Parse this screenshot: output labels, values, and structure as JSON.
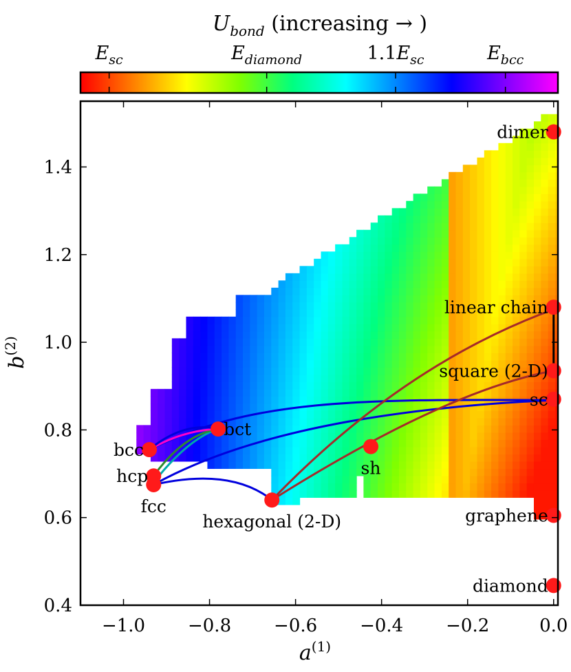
{
  "chart_data": {
    "type": "heatmap",
    "title": "U_bond (increasing →)",
    "colorbar": {
      "label_main": "U",
      "label_sub": "bond",
      "label_rest": " (increasing → )",
      "ticks": [
        {
          "main": "E",
          "sub": "sc",
          "prefix": "",
          "pos": 0.06
        },
        {
          "main": "E",
          "sub": "diamond",
          "prefix": "",
          "pos": 0.39
        },
        {
          "main": "E",
          "sub": "sc",
          "prefix": "1.1",
          "pos": 0.66
        },
        {
          "main": "E",
          "sub": "bcc",
          "prefix": "",
          "pos": 0.89
        }
      ],
      "stops": [
        "#ff0000",
        "#ff8000",
        "#ffff00",
        "#80ff00",
        "#00ff80",
        "#00ffff",
        "#0080ff",
        "#0000ff",
        "#8000ff",
        "#ff00ff"
      ]
    },
    "xlabel": "a",
    "xlabel_sup": "(1)",
    "ylabel": "b",
    "ylabel_sup": "(2)",
    "xlim": [
      -1.1,
      0.01
    ],
    "ylim": [
      0.4,
      1.55
    ],
    "xticks": [
      -1.0,
      -0.8,
      -0.6,
      -0.4,
      -0.2,
      0.0
    ],
    "xtick_labels": [
      "−1.0",
      "−0.8",
      "−0.6",
      "−0.4",
      "−0.2",
      "0.0"
    ],
    "yticks": [
      0.4,
      0.6,
      0.8,
      1.0,
      1.2,
      1.4
    ],
    "ytick_labels": [
      "0.4",
      "0.6",
      "0.8",
      "1.0",
      "1.2",
      "1.4"
    ],
    "points": [
      {
        "name": "dimer",
        "x": 0.0,
        "y": 1.48,
        "label_side": "left"
      },
      {
        "name": "linear chain",
        "x": 0.0,
        "y": 1.08,
        "label_side": "left"
      },
      {
        "name": "square (2-D)",
        "x": 0.0,
        "y": 0.935,
        "label_side": "left"
      },
      {
        "name": "sc",
        "x": 0.0,
        "y": 0.87,
        "label_side": "left"
      },
      {
        "name": "graphene",
        "x": 0.0,
        "y": 0.605,
        "label_side": "left"
      },
      {
        "name": "diamond",
        "x": 0.0,
        "y": 0.445,
        "label_side": "left"
      },
      {
        "name": "bcc",
        "x": -0.94,
        "y": 0.755,
        "label_side": "left"
      },
      {
        "name": "hcp",
        "x": -0.93,
        "y": 0.695,
        "label_side": "left"
      },
      {
        "name": "fcc",
        "x": -0.93,
        "y": 0.675,
        "label_side": "below"
      },
      {
        "name": "bct",
        "x": -0.78,
        "y": 0.802,
        "label_side": "right"
      },
      {
        "name": "sh",
        "x": -0.425,
        "y": 0.762,
        "label_side": "below"
      },
      {
        "name": "hexagonal (2-D)",
        "x": -0.655,
        "y": 0.64,
        "label_side": "below"
      }
    ],
    "paths": [
      {
        "name": "fcc-to-sc",
        "color": "#0000dd",
        "pts": [
          [
            -0.93,
            0.675
          ],
          [
            -0.72,
            0.79
          ],
          [
            -0.4,
            0.85
          ],
          [
            0.0,
            0.868
          ]
        ]
      },
      {
        "name": "bcc-to-sc",
        "color": "#0000dd",
        "pts": [
          [
            -0.94,
            0.755
          ],
          [
            -0.7,
            0.872
          ],
          [
            -0.45,
            0.87
          ],
          [
            0.0,
            0.868
          ]
        ]
      },
      {
        "name": "fcc-to-hexagonal",
        "color": "#0000dd",
        "pts": [
          [
            -0.93,
            0.675
          ],
          [
            -0.75,
            0.715
          ],
          [
            -0.655,
            0.64
          ]
        ]
      },
      {
        "name": "hexagonal-to-linear-chain",
        "color": "#a52a2a",
        "pts": [
          [
            -0.655,
            0.64
          ],
          [
            -0.35,
            0.95
          ],
          [
            0.0,
            1.075
          ]
        ]
      },
      {
        "name": "hexagonal-to-square",
        "color": "#a52a2a",
        "pts": [
          [
            -0.655,
            0.64
          ],
          [
            -0.25,
            0.89
          ],
          [
            0.0,
            0.935
          ]
        ]
      },
      {
        "name": "fcc-to-bct-teal",
        "color": "#00aaaa",
        "pts": [
          [
            -0.93,
            0.68
          ],
          [
            -0.85,
            0.78
          ],
          [
            -0.78,
            0.802
          ]
        ]
      },
      {
        "name": "hcp-to-bct-green",
        "color": "#2e8b2e",
        "pts": [
          [
            -0.93,
            0.695
          ],
          [
            -0.86,
            0.79
          ],
          [
            -0.78,
            0.802
          ]
        ]
      },
      {
        "name": "bcc-to-bct-magenta",
        "color": "#ff00cc",
        "pts": [
          [
            -0.94,
            0.755
          ],
          [
            -0.86,
            0.8
          ],
          [
            -0.78,
            0.802
          ]
        ]
      },
      {
        "name": "bcc-to-bct-blue",
        "color": "#0000dd",
        "pts": [
          [
            -0.94,
            0.755
          ],
          [
            -0.86,
            0.82
          ],
          [
            -0.78,
            0.802
          ]
        ]
      },
      {
        "name": "sc-to-square",
        "color": "#000000",
        "pts": [
          [
            0.0,
            0.93
          ],
          [
            0.0,
            1.07
          ]
        ]
      }
    ]
  }
}
